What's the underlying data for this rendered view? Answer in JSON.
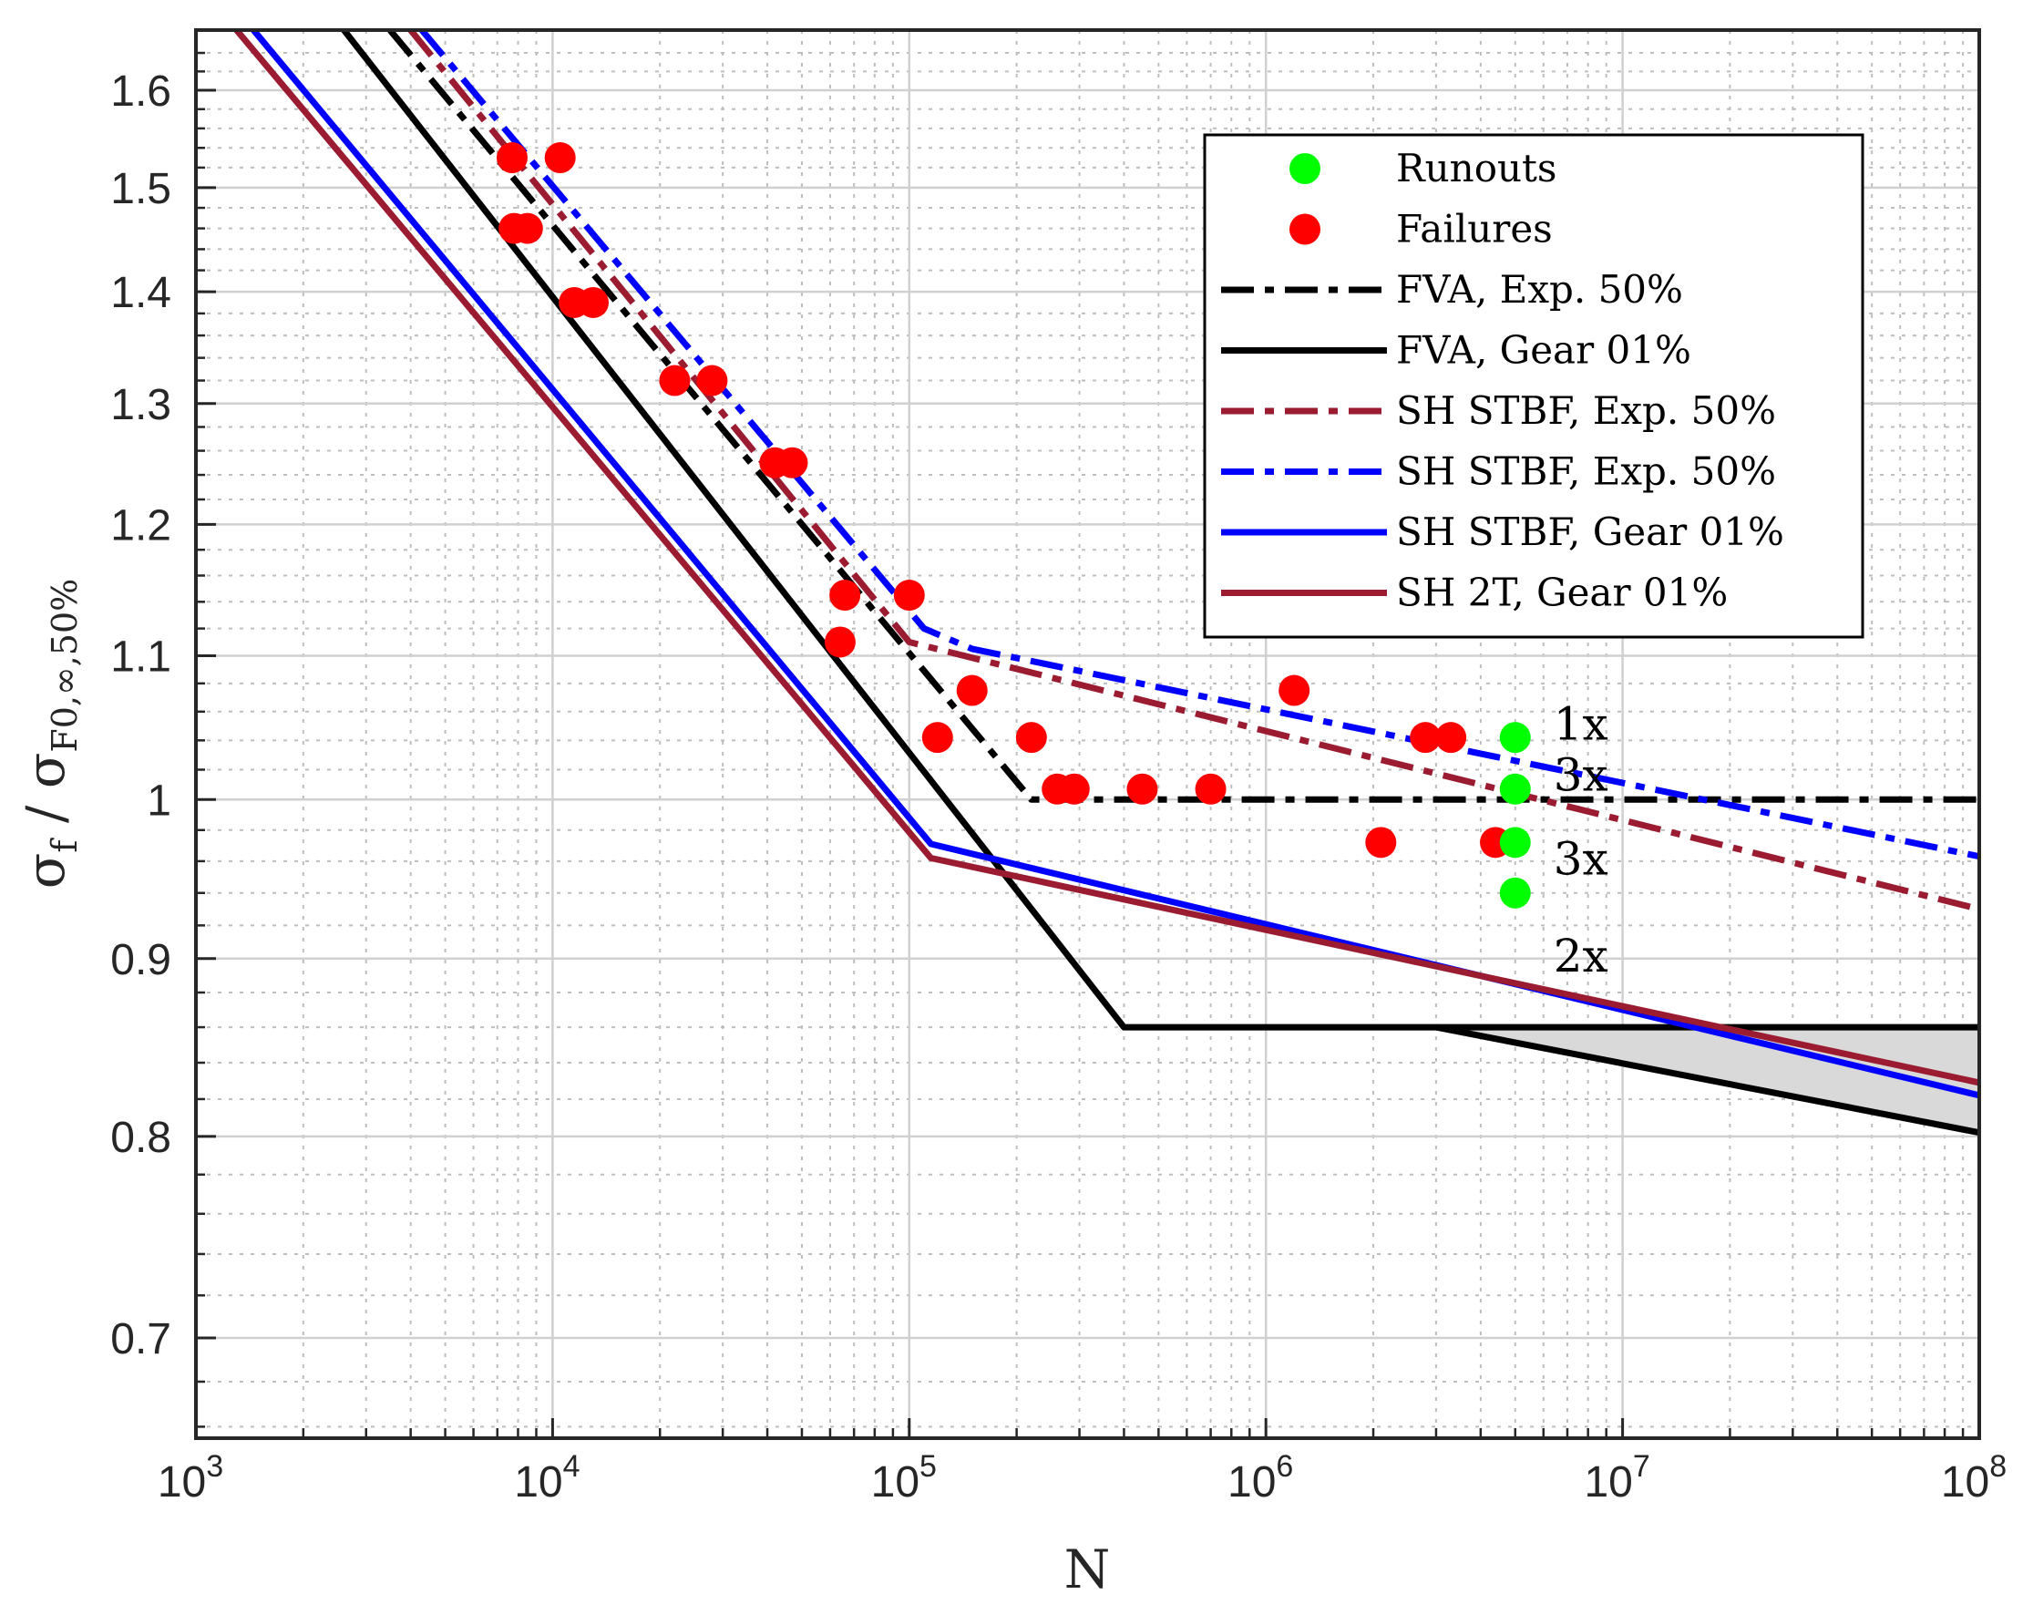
{
  "chart_data": {
    "type": "line",
    "xscale": "log",
    "yscale": "log",
    "xlim": [
      1000,
      100000000
    ],
    "ylim": [
      0.655,
      1.665
    ],
    "xlabel": "N",
    "ylabel_parts": [
      "σ",
      "f",
      " / σ",
      "F0,∞,50%"
    ],
    "x_ticks": [
      {
        "base": "10",
        "exp": "3",
        "value": 1000
      },
      {
        "base": "10",
        "exp": "4",
        "value": 10000
      },
      {
        "base": "10",
        "exp": "5",
        "value": 100000
      },
      {
        "base": "10",
        "exp": "6",
        "value": 1000000
      },
      {
        "base": "10",
        "exp": "7",
        "value": 10000000
      },
      {
        "base": "10",
        "exp": "8",
        "value": 100000000
      }
    ],
    "y_ticks": [
      {
        "label": "0.7",
        "value": 0.7
      },
      {
        "label": "0.8",
        "value": 0.8
      },
      {
        "label": "0.9",
        "value": 0.9
      },
      {
        "label": "1",
        "value": 1.0
      },
      {
        "label": "1.1",
        "value": 1.1
      },
      {
        "label": "1.2",
        "value": 1.2
      },
      {
        "label": "1.3",
        "value": 1.3
      },
      {
        "label": "1.4",
        "value": 1.4
      },
      {
        "label": "1.5",
        "value": 1.5
      },
      {
        "label": "1.6",
        "value": 1.6
      }
    ],
    "grid": true,
    "legend_position": "top-right",
    "series": [
      {
        "name": "FVA, Exp. 50%",
        "style": "dashdot",
        "color": "#000000",
        "points": [
          [
            3500,
            1.665
          ],
          [
            220000,
            1.0
          ],
          [
            100000000,
            1.0
          ]
        ]
      },
      {
        "name": "FVA, Gear 01%",
        "style": "solid",
        "color": "#000000",
        "points": [
          [
            2600,
            1.665
          ],
          [
            400000,
            0.86
          ],
          [
            3000000,
            0.86
          ],
          [
            100000000,
            0.86
          ]
        ]
      },
      {
        "name": "SH STBF, Exp. 50%",
        "style": "dashdot",
        "color": "#9b1b30",
        "points": [
          [
            4000,
            1.665
          ],
          [
            100000,
            1.11
          ],
          [
            100000000,
            0.93
          ]
        ]
      },
      {
        "name": "SH STBF, Exp. 50%",
        "style": "dashdot",
        "color": "#0000ff",
        "points": [
          [
            4300,
            1.665
          ],
          [
            110000,
            1.12
          ],
          [
            150000,
            1.105
          ],
          [
            100000000,
            0.963
          ]
        ]
      },
      {
        "name": "SH STBF, Gear 01%",
        "style": "solid",
        "color": "#0000ff",
        "points": [
          [
            1450,
            1.665
          ],
          [
            115000,
            0.971
          ],
          [
            100000000,
            0.822
          ]
        ]
      },
      {
        "name": "SH 2T, Gear 01%",
        "style": "solid",
        "color": "#9b1b30",
        "points": [
          [
            1300,
            1.665
          ],
          [
            115000,
            0.962
          ],
          [
            100000000,
            0.829
          ]
        ]
      },
      {
        "name": "",
        "style": "solid",
        "color": "#000000",
        "points": [
          [
            3000000,
            0.86
          ],
          [
            100000000,
            0.802
          ]
        ]
      }
    ],
    "shaded_region": {
      "color": "#d9d9d9",
      "upper": [
        [
          3000000,
          0.86
        ],
        [
          100000000,
          0.86
        ]
      ],
      "lower": [
        [
          3000000,
          0.86
        ],
        [
          100000000,
          0.802
        ]
      ]
    },
    "failures": {
      "name": "Failures",
      "color": "#ff0000",
      "points": [
        [
          7700,
          1.53
        ],
        [
          10500,
          1.53
        ],
        [
          7800,
          1.46
        ],
        [
          8500,
          1.46
        ],
        [
          11500,
          1.39
        ],
        [
          13000,
          1.39
        ],
        [
          22000,
          1.32
        ],
        [
          28000,
          1.32
        ],
        [
          42000,
          1.25
        ],
        [
          47000,
          1.25
        ],
        [
          66000,
          1.145
        ],
        [
          100000,
          1.145
        ],
        [
          64000,
          1.11
        ],
        [
          120000,
          1.042
        ],
        [
          150000,
          1.075
        ],
        [
          220000,
          1.042
        ],
        [
          260000,
          1.007
        ],
        [
          290000,
          1.007
        ],
        [
          450000,
          1.007
        ],
        [
          700000,
          1.007
        ],
        [
          1200000,
          1.075
        ],
        [
          2100000,
          0.972
        ],
        [
          2800000,
          1.042
        ],
        [
          3300000,
          1.042
        ],
        [
          4400000,
          0.972
        ]
      ]
    },
    "runouts": {
      "name": "Runouts",
      "color": "#00ff00",
      "points": [
        [
          5000000,
          1.042
        ],
        [
          5000000,
          1.007
        ],
        [
          5000000,
          0.972
        ],
        [
          5000000,
          0.94
        ]
      ]
    },
    "annotations": [
      {
        "text": "1x",
        "x": 6400000,
        "y": 1.052
      },
      {
        "text": "3x",
        "x": 6400000,
        "y": 1.017
      },
      {
        "text": "3x",
        "x": 6400000,
        "y": 0.962
      },
      {
        "text": "2x",
        "x": 6400000,
        "y": 0.902
      }
    ]
  }
}
